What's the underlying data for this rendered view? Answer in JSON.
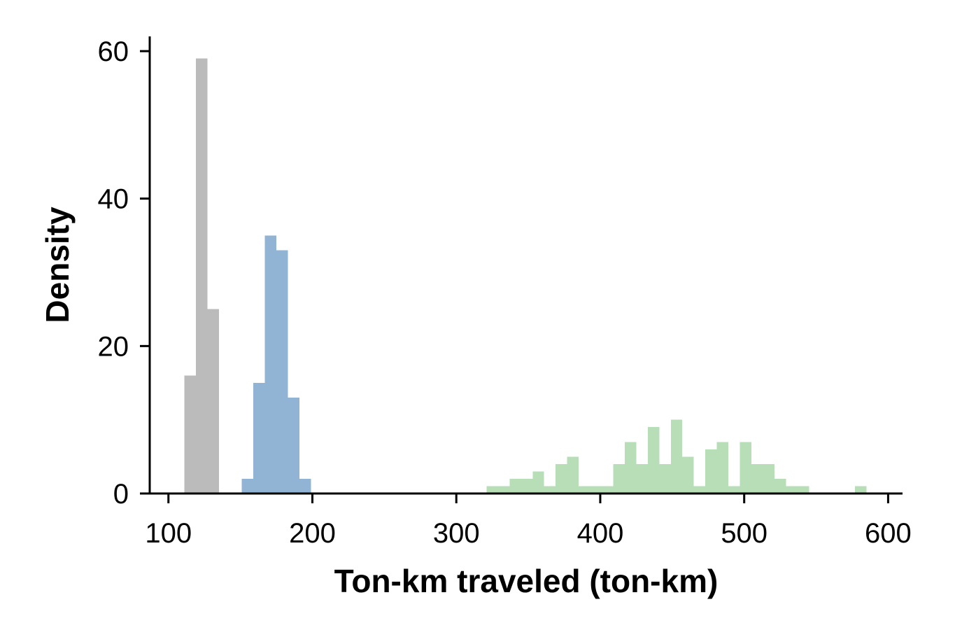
{
  "chart_data": {
    "type": "bar",
    "title": "",
    "xlabel": "Ton-km traveled (ton-km)",
    "ylabel": "Density",
    "xlim": [
      87,
      610
    ],
    "ylim": [
      0,
      62
    ],
    "xticks": [
      100,
      200,
      300,
      400,
      500,
      600
    ],
    "yticks": [
      0,
      20,
      40,
      60
    ],
    "grid": false,
    "legend": "none",
    "series": [
      {
        "color": "#bbbbbb",
        "bins": [
          {
            "x0": 111,
            "x1": 119,
            "y": 16
          },
          {
            "x0": 119,
            "x1": 127,
            "y": 59
          },
          {
            "x0": 127,
            "x1": 135,
            "y": 25
          }
        ]
      },
      {
        "color": "#92b4d4",
        "bins": [
          {
            "x0": 151,
            "x1": 159,
            "y": 2
          },
          {
            "x0": 159,
            "x1": 167,
            "y": 15
          },
          {
            "x0": 167,
            "x1": 175,
            "y": 35
          },
          {
            "x0": 175,
            "x1": 183,
            "y": 33
          },
          {
            "x0": 183,
            "x1": 191,
            "y": 13
          },
          {
            "x0": 191,
            "x1": 199,
            "y": 2
          }
        ]
      },
      {
        "color": "#b8deb8",
        "bins": [
          {
            "x0": 321,
            "x1": 329,
            "y": 1
          },
          {
            "x0": 329,
            "x1": 337,
            "y": 1
          },
          {
            "x0": 337,
            "x1": 345,
            "y": 2
          },
          {
            "x0": 345,
            "x1": 353,
            "y": 2
          },
          {
            "x0": 353,
            "x1": 361,
            "y": 3
          },
          {
            "x0": 361,
            "x1": 369,
            "y": 1
          },
          {
            "x0": 369,
            "x1": 377,
            "y": 4
          },
          {
            "x0": 377,
            "x1": 385,
            "y": 5
          },
          {
            "x0": 385,
            "x1": 393,
            "y": 1
          },
          {
            "x0": 393,
            "x1": 401,
            "y": 1
          },
          {
            "x0": 401,
            "x1": 409,
            "y": 1
          },
          {
            "x0": 409,
            "x1": 417,
            "y": 4
          },
          {
            "x0": 417,
            "x1": 425,
            "y": 7
          },
          {
            "x0": 425,
            "x1": 433,
            "y": 4
          },
          {
            "x0": 433,
            "x1": 441,
            "y": 9
          },
          {
            "x0": 441,
            "x1": 449,
            "y": 4
          },
          {
            "x0": 449,
            "x1": 457,
            "y": 10
          },
          {
            "x0": 457,
            "x1": 465,
            "y": 5
          },
          {
            "x0": 465,
            "x1": 473,
            "y": 1
          },
          {
            "x0": 473,
            "x1": 481,
            "y": 6
          },
          {
            "x0": 481,
            "x1": 489,
            "y": 7
          },
          {
            "x0": 489,
            "x1": 497,
            "y": 1
          },
          {
            "x0": 497,
            "x1": 505,
            "y": 7
          },
          {
            "x0": 505,
            "x1": 513,
            "y": 4
          },
          {
            "x0": 513,
            "x1": 521,
            "y": 4
          },
          {
            "x0": 521,
            "x1": 529,
            "y": 2
          },
          {
            "x0": 529,
            "x1": 537,
            "y": 1
          },
          {
            "x0": 537,
            "x1": 545,
            "y": 1
          },
          {
            "x0": 577,
            "x1": 585,
            "y": 1
          }
        ]
      }
    ]
  }
}
